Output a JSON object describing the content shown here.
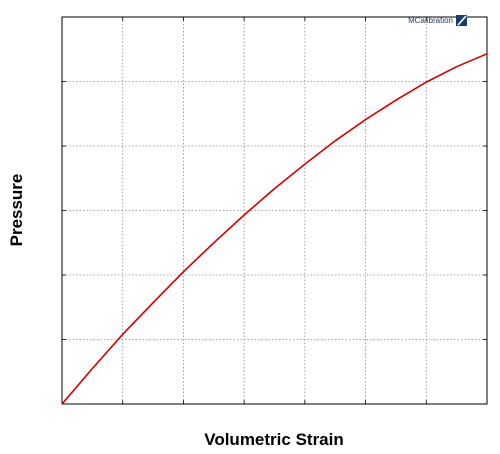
{
  "chart_data": {
    "type": "line",
    "title": "",
    "xlabel": "Volumetric Strain",
    "ylabel": "Pressure",
    "xlim": [
      0,
      7
    ],
    "ylim": [
      0,
      6
    ],
    "x_tick_labels_shown": false,
    "y_tick_labels_shown": false,
    "grid": true,
    "legend": "none",
    "series": [
      {
        "color": "#d40000",
        "x": [
          0,
          0.5,
          1,
          1.5,
          2,
          2.5,
          3,
          3.5,
          4,
          4.5,
          5,
          5.5,
          6,
          6.5,
          7
        ],
        "y": [
          0,
          0.55,
          1.08,
          1.57,
          2.05,
          2.5,
          2.93,
          3.34,
          3.72,
          4.08,
          4.41,
          4.71,
          4.99,
          5.23,
          5.43
        ]
      }
    ]
  },
  "watermark": {
    "text": "MCalibration",
    "logo_color": "#1d3c6e"
  }
}
